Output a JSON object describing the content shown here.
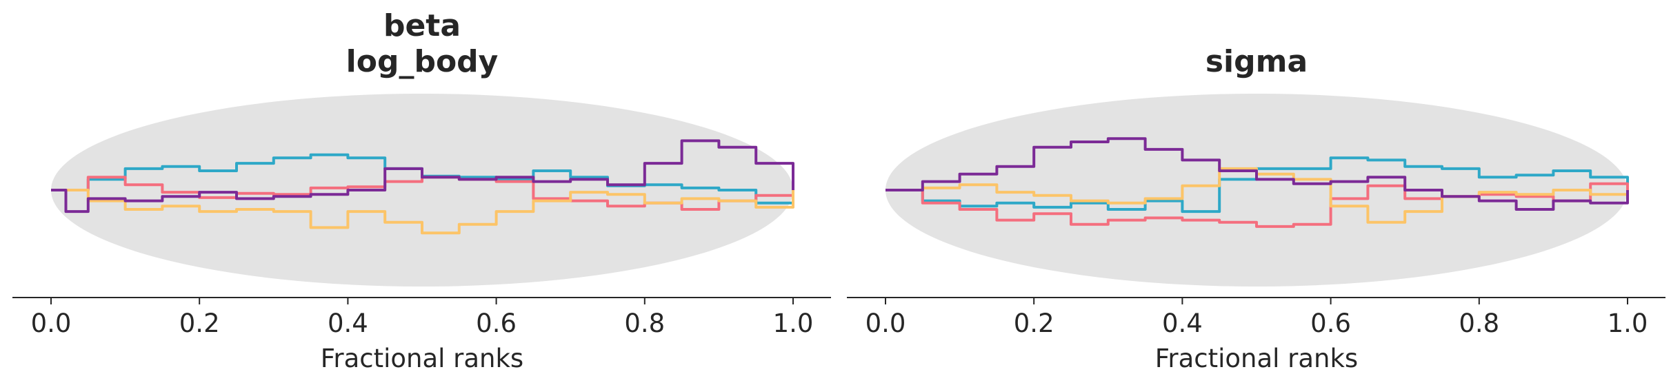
{
  "chart_data": [
    {
      "type": "line",
      "title_lines": [
        "beta",
        "log_body"
      ],
      "xlabel": "Fractional ranks",
      "ylabel": "",
      "xlim": [
        -0.05,
        1.05
      ],
      "ylim": [
        -0.09,
        0.09
      ],
      "xticks": [
        "0.0",
        "0.2",
        "0.4",
        "0.6",
        "0.8",
        "1.0"
      ],
      "grid": false,
      "envelope": {
        "shape": "ellipse",
        "color": "#e3e3e3",
        "half_height": 0.09
      },
      "series": [
        {
          "color": "#2ea8c7",
          "x": [
            0,
            0.05,
            0.1,
            0.15,
            0.2,
            0.25,
            0.3,
            0.35,
            0.4,
            0.45,
            0.5,
            0.55,
            0.6,
            0.65,
            0.7,
            0.75,
            0.8,
            0.85,
            0.9,
            0.95,
            1.0
          ],
          "y": [
            0,
            0.01,
            0.02,
            0.022,
            0.018,
            0.025,
            0.03,
            0.033,
            0.03,
            0.02,
            0.013,
            0.012,
            0.01,
            0.018,
            0.012,
            0.004,
            0.005,
            0.002,
            0.0,
            -0.012,
            0.0
          ]
        },
        {
          "color": "#f46e7e",
          "x": [
            0,
            0.05,
            0.1,
            0.15,
            0.2,
            0.25,
            0.3,
            0.35,
            0.4,
            0.45,
            0.5,
            0.55,
            0.6,
            0.65,
            0.7,
            0.75,
            0.8,
            0.85,
            0.9,
            0.95,
            1.0
          ],
          "y": [
            0,
            0.012,
            0.005,
            -0.002,
            -0.007,
            -0.003,
            -0.004,
            0.002,
            0.003,
            0.008,
            0.012,
            0.01,
            0.008,
            -0.008,
            -0.01,
            -0.015,
            -0.012,
            -0.018,
            -0.01,
            -0.005,
            0.0
          ]
        },
        {
          "color": "#fcc468",
          "x": [
            0,
            0.05,
            0.1,
            0.15,
            0.2,
            0.25,
            0.3,
            0.35,
            0.4,
            0.45,
            0.5,
            0.55,
            0.6,
            0.65,
            0.7,
            0.75,
            0.8,
            0.85,
            0.9,
            0.95,
            1.0
          ],
          "y": [
            0,
            -0.01,
            -0.018,
            -0.015,
            -0.02,
            -0.018,
            -0.02,
            -0.035,
            -0.02,
            -0.03,
            -0.04,
            -0.032,
            -0.02,
            -0.01,
            -0.002,
            -0.004,
            -0.012,
            -0.008,
            -0.01,
            -0.016,
            0.0
          ]
        },
        {
          "color": "#7b2a96",
          "x": [
            0,
            0.02,
            0.05,
            0.1,
            0.15,
            0.2,
            0.25,
            0.3,
            0.35,
            0.4,
            0.45,
            0.5,
            0.55,
            0.6,
            0.65,
            0.7,
            0.75,
            0.8,
            0.85,
            0.9,
            0.95,
            1.0
          ],
          "y": [
            0,
            -0.02,
            -0.008,
            -0.01,
            -0.006,
            -0.002,
            -0.008,
            -0.006,
            -0.004,
            0.0,
            0.02,
            0.012,
            0.01,
            0.012,
            0.008,
            0.01,
            0.005,
            0.025,
            0.046,
            0.04,
            0.025,
            0.0
          ]
        }
      ]
    },
    {
      "type": "line",
      "title_lines": [
        "sigma"
      ],
      "xlabel": "Fractional ranks",
      "ylabel": "",
      "xlim": [
        -0.05,
        1.05
      ],
      "ylim": [
        -0.09,
        0.09
      ],
      "xticks": [
        "0.0",
        "0.2",
        "0.4",
        "0.6",
        "0.8",
        "1.0"
      ],
      "grid": false,
      "envelope": {
        "shape": "ellipse",
        "color": "#e3e3e3",
        "half_height": 0.09
      },
      "series": [
        {
          "color": "#2ea8c7",
          "x": [
            0,
            0.05,
            0.1,
            0.15,
            0.2,
            0.25,
            0.3,
            0.35,
            0.4,
            0.45,
            0.5,
            0.55,
            0.6,
            0.65,
            0.7,
            0.75,
            0.8,
            0.85,
            0.9,
            0.95,
            1.0
          ],
          "y": [
            0,
            -0.01,
            -0.015,
            -0.012,
            -0.016,
            -0.012,
            -0.018,
            -0.01,
            -0.02,
            0.01,
            0.02,
            0.02,
            0.03,
            0.028,
            0.022,
            0.02,
            0.012,
            0.014,
            0.018,
            0.012,
            0.0
          ]
        },
        {
          "color": "#f46e7e",
          "x": [
            0,
            0.05,
            0.1,
            0.15,
            0.2,
            0.25,
            0.3,
            0.35,
            0.4,
            0.45,
            0.5,
            0.55,
            0.6,
            0.65,
            0.7,
            0.75,
            0.8,
            0.85,
            0.9,
            0.95,
            1.0
          ],
          "y": [
            0,
            -0.012,
            -0.018,
            -0.028,
            -0.022,
            -0.032,
            -0.028,
            -0.026,
            -0.028,
            -0.03,
            -0.034,
            -0.032,
            -0.008,
            0.004,
            -0.008,
            -0.006,
            -0.004,
            -0.006,
            -0.01,
            0.006,
            0.0
          ]
        },
        {
          "color": "#fcc468",
          "x": [
            0,
            0.05,
            0.1,
            0.15,
            0.2,
            0.25,
            0.3,
            0.35,
            0.4,
            0.45,
            0.5,
            0.55,
            0.6,
            0.65,
            0.7,
            0.75,
            0.8,
            0.85,
            0.9,
            0.95,
            1.0
          ],
          "y": [
            0,
            0.002,
            0.005,
            -0.002,
            -0.005,
            -0.01,
            -0.012,
            -0.008,
            0.004,
            0.02,
            0.015,
            0.01,
            -0.015,
            -0.03,
            -0.02,
            -0.006,
            -0.002,
            -0.004,
            0.0,
            -0.004,
            0.0
          ]
        },
        {
          "color": "#7b2a96",
          "x": [
            0,
            0.05,
            0.1,
            0.15,
            0.2,
            0.25,
            0.3,
            0.35,
            0.4,
            0.45,
            0.5,
            0.55,
            0.6,
            0.65,
            0.7,
            0.75,
            0.8,
            0.85,
            0.9,
            0.95,
            1.0
          ],
          "y": [
            0,
            0.008,
            0.015,
            0.022,
            0.04,
            0.045,
            0.048,
            0.038,
            0.028,
            0.018,
            0.01,
            0.006,
            0.008,
            0.012,
            0.0,
            -0.006,
            -0.01,
            -0.018,
            -0.01,
            -0.012,
            0.0
          ]
        }
      ]
    }
  ]
}
